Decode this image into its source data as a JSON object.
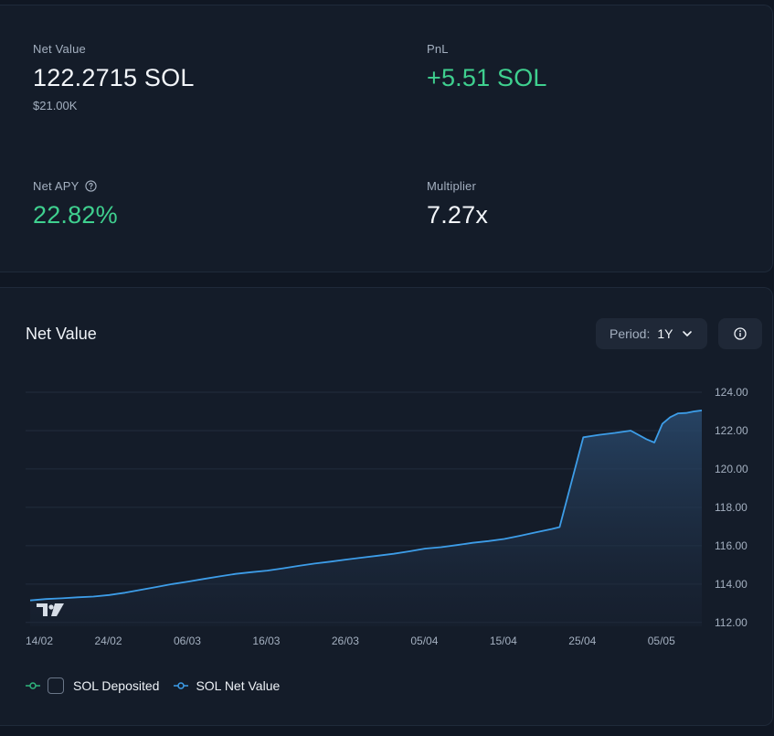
{
  "stats": {
    "net_value": {
      "label": "Net Value",
      "value": "122.2715 SOL",
      "sub": "$21.00K"
    },
    "pnl": {
      "label": "PnL",
      "value": "+5.51 SOL"
    },
    "net_apy": {
      "label": "Net APY",
      "value": "22.82%"
    },
    "multiplier": {
      "label": "Multiplier",
      "value": "7.27x"
    }
  },
  "chart_panel": {
    "title": "Net Value",
    "period_label": "Period:",
    "period_value": "1Y"
  },
  "colors": {
    "accent_green": "#3fd08f",
    "line_blue": "#3d9de8",
    "deposited_green": "#2fb57c"
  },
  "chart_data": {
    "type": "area",
    "title": "Net Value",
    "x_ticks": [
      "14/02",
      "24/02",
      "06/03",
      "16/03",
      "26/03",
      "05/04",
      "15/04",
      "25/04",
      "05/05"
    ],
    "y_ticks": [
      "124.00",
      "122.00",
      "120.00",
      "118.00",
      "116.00",
      "114.00",
      "112.00"
    ],
    "ylim": [
      111.8,
      124.0
    ],
    "y_axis_position": "right",
    "grid": true,
    "legend_position": "bottom-left",
    "series": [
      {
        "name": "SOL Net Value",
        "color": "#3d9de8",
        "dates": [
          "2025-02-14",
          "2025-02-16",
          "2025-02-18",
          "2025-02-20",
          "2025-02-22",
          "2025-02-24",
          "2025-02-26",
          "2025-02-28",
          "2025-03-02",
          "2025-03-04",
          "2025-03-06",
          "2025-03-08",
          "2025-03-10",
          "2025-03-12",
          "2025-03-14",
          "2025-03-16",
          "2025-03-18",
          "2025-03-20",
          "2025-03-22",
          "2025-03-24",
          "2025-03-26",
          "2025-03-28",
          "2025-03-30",
          "2025-04-01",
          "2025-04-03",
          "2025-04-05",
          "2025-04-07",
          "2025-04-09",
          "2025-04-11",
          "2025-04-13",
          "2025-04-15",
          "2025-04-17",
          "2025-04-19",
          "2025-04-21",
          "2025-04-22",
          "2025-04-25",
          "2025-04-27",
          "2025-04-29",
          "2025-05-01",
          "2025-05-03",
          "2025-05-04",
          "2025-05-05",
          "2025-05-06",
          "2025-05-07",
          "2025-05-08",
          "2025-05-09",
          "2025-05-10"
        ],
        "values": [
          113.15,
          113.22,
          113.26,
          113.31,
          113.35,
          113.43,
          113.55,
          113.7,
          113.85,
          114.0,
          114.13,
          114.27,
          114.4,
          114.53,
          114.62,
          114.7,
          114.82,
          114.95,
          115.07,
          115.17,
          115.28,
          115.38,
          115.48,
          115.58,
          115.71,
          115.85,
          115.92,
          116.03,
          116.15,
          116.24,
          116.35,
          116.52,
          116.7,
          116.87,
          116.97,
          121.65,
          121.78,
          121.88,
          122.0,
          121.55,
          121.38,
          122.35,
          122.7,
          122.9,
          122.92,
          123.0,
          123.05
        ]
      },
      {
        "name": "SOL Deposited",
        "color": "#2fb57c"
      }
    ]
  }
}
